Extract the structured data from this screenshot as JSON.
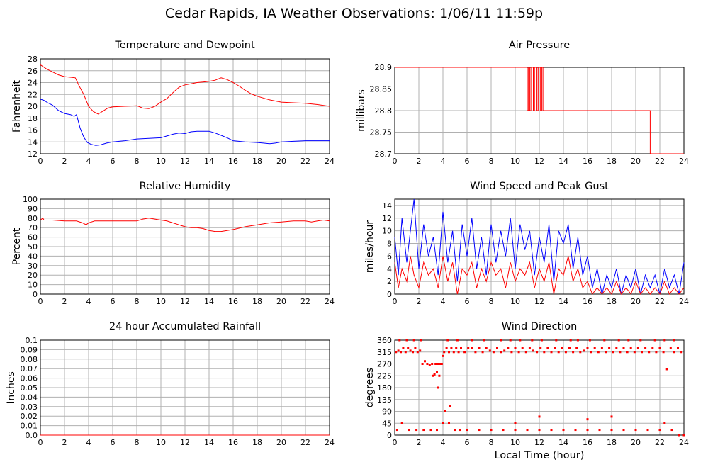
{
  "page": {
    "title": "Cedar Rapids, IA Weather Observations: 1/06/11 11:59p"
  },
  "xaxis_label": "Local Time (hour)",
  "chart_data": [
    {
      "id": "temp",
      "type": "line",
      "title": "Temperature and Dewpoint",
      "ylabel": "Fahrenheit",
      "xlim": [
        0,
        24
      ],
      "ylim": [
        12,
        28
      ],
      "xticks": [
        0,
        2,
        4,
        6,
        8,
        10,
        12,
        14,
        16,
        18,
        20,
        22,
        24
      ],
      "yticks": [
        12,
        14,
        16,
        18,
        20,
        22,
        24,
        26,
        28
      ],
      "grid": true,
      "series": [
        {
          "color": "#ff0000",
          "x": [
            0,
            0.5,
            1,
            1.5,
            2,
            2.5,
            2.9,
            3.2,
            3.6,
            4,
            4.4,
            4.8,
            5.2,
            5.6,
            6,
            7,
            8,
            8.5,
            9,
            9.5,
            10,
            10.5,
            11,
            11.5,
            12,
            12.5,
            13,
            13.5,
            14,
            14.5,
            15,
            15.5,
            16,
            16.5,
            17,
            17.5,
            18,
            18.5,
            19,
            19.5,
            20,
            21,
            22,
            23,
            24
          ],
          "y": [
            27,
            26.3,
            25.8,
            25.3,
            25,
            24.9,
            24.8,
            23.5,
            22,
            20,
            19.1,
            18.7,
            19.2,
            19.7,
            19.9,
            20,
            20.1,
            19.7,
            19.6,
            20,
            20.7,
            21.3,
            22.3,
            23.2,
            23.6,
            23.8,
            24,
            24.1,
            24.2,
            24.4,
            24.8,
            24.5,
            24,
            23.4,
            22.7,
            22.1,
            21.7,
            21.4,
            21.1,
            20.9,
            20.7,
            20.6,
            20.5,
            20.3,
            20
          ]
        },
        {
          "color": "#0000ff",
          "x": [
            0,
            0.3,
            0.6,
            1,
            1.5,
            2,
            2.5,
            2.8,
            3,
            3.3,
            3.6,
            3.9,
            4.2,
            4.6,
            5,
            5.5,
            6,
            7,
            8,
            9,
            10,
            10.5,
            11,
            11.5,
            12,
            12.5,
            13,
            13.5,
            14,
            14.5,
            15,
            15.5,
            16,
            17,
            18,
            18.5,
            19,
            19.5,
            20,
            21,
            22,
            23,
            24
          ],
          "y": [
            21.2,
            21,
            20.6,
            20.2,
            19.3,
            18.8,
            18.6,
            18.3,
            18.6,
            16.3,
            14.8,
            13.9,
            13.6,
            13.4,
            13.5,
            13.8,
            14,
            14.2,
            14.5,
            14.6,
            14.7,
            15,
            15.3,
            15.5,
            15.4,
            15.7,
            15.8,
            15.8,
            15.8,
            15.5,
            15.1,
            14.7,
            14.2,
            14,
            13.9,
            13.8,
            13.7,
            13.8,
            14,
            14.1,
            14.2,
            14.2,
            14.2
          ]
        }
      ]
    },
    {
      "id": "pressure",
      "type": "line",
      "title": "Air Pressure",
      "ylabel": "millibars",
      "xlim": [
        0,
        24
      ],
      "ylim": [
        28.7,
        28.9
      ],
      "xticks": [
        0,
        2,
        4,
        6,
        8,
        10,
        12,
        14,
        16,
        18,
        20,
        22,
        24
      ],
      "yticks": [
        28.7,
        28.75,
        28.8,
        28.85,
        28.9
      ],
      "ytick_labels": [
        "28.7",
        "28.75",
        "28.8",
        "28.85",
        "28.9"
      ],
      "grid": true,
      "series": [
        {
          "color": "#ff0000",
          "x": [
            0,
            11,
            11,
            11.1,
            11.1,
            11.2,
            11.2,
            11.3,
            11.3,
            11.5,
            11.5,
            11.6,
            11.6,
            11.8,
            11.8,
            11.9,
            11.9,
            12.1,
            12.1,
            12.2,
            12.2,
            12.3,
            12.3,
            21.2,
            21.2,
            24
          ],
          "y": [
            28.9,
            28.9,
            28.8,
            28.8,
            28.9,
            28.9,
            28.8,
            28.8,
            28.9,
            28.9,
            28.8,
            28.8,
            28.9,
            28.9,
            28.8,
            28.8,
            28.9,
            28.9,
            28.8,
            28.8,
            28.9,
            28.9,
            28.8,
            28.8,
            28.7,
            28.7
          ]
        }
      ]
    },
    {
      "id": "rh",
      "type": "line",
      "title": "Relative Humidity",
      "ylabel": "Percent",
      "xlim": [
        0,
        24
      ],
      "ylim": [
        0,
        100
      ],
      "xticks": [
        0,
        2,
        4,
        6,
        8,
        10,
        12,
        14,
        16,
        18,
        20,
        22,
        24
      ],
      "yticks": [
        0,
        10,
        20,
        30,
        40,
        50,
        60,
        70,
        80,
        90,
        100
      ],
      "grid": true,
      "series": [
        {
          "color": "#ff0000",
          "x": [
            0,
            0.2,
            0.3,
            0.5,
            1,
            2,
            3,
            3.5,
            3.8,
            4,
            4.5,
            5,
            6,
            7,
            8,
            8.5,
            9,
            9.5,
            10,
            10.5,
            11,
            11.5,
            12,
            12.5,
            13,
            13.5,
            14,
            14.5,
            15,
            15.5,
            16,
            17,
            18,
            19,
            20,
            21,
            22,
            22.5,
            23,
            23.5,
            24
          ],
          "y": [
            78,
            80,
            78,
            78,
            78,
            77,
            77,
            75,
            73,
            75,
            77,
            77,
            77,
            77,
            77,
            79,
            80,
            79,
            78,
            77,
            75,
            73,
            71,
            70,
            70,
            69,
            67,
            66,
            66,
            67,
            68,
            71,
            73,
            75,
            76,
            77,
            77,
            76,
            77,
            78,
            77
          ]
        }
      ]
    },
    {
      "id": "wind",
      "type": "line",
      "title": "Wind Speed and Peak Gust",
      "ylabel": "miles/hour",
      "xlim": [
        0,
        24
      ],
      "ylim": [
        0,
        15
      ],
      "xticks": [
        0,
        2,
        4,
        6,
        8,
        10,
        12,
        14,
        16,
        18,
        20,
        22,
        24
      ],
      "yticks": [
        0,
        2,
        4,
        6,
        8,
        10,
        12,
        14
      ],
      "grid": true,
      "series": [
        {
          "color": "#0000ff",
          "x": [
            0,
            0.3,
            0.6,
            1,
            1.3,
            1.6,
            2,
            2.4,
            2.8,
            3.2,
            3.6,
            4,
            4.4,
            4.8,
            5.2,
            5.6,
            6,
            6.4,
            6.8,
            7.2,
            7.6,
            8,
            8.4,
            8.8,
            9.2,
            9.6,
            10,
            10.4,
            10.8,
            11.2,
            11.6,
            12,
            12.4,
            12.8,
            13.2,
            13.6,
            14,
            14.4,
            14.8,
            15.2,
            15.6,
            16,
            16.4,
            16.8,
            17.2,
            17.6,
            18,
            18.4,
            18.8,
            19.2,
            19.6,
            20,
            20.4,
            20.8,
            21.2,
            21.6,
            22,
            22.4,
            22.8,
            23.2,
            23.6,
            24
          ],
          "y": [
            9,
            3,
            12,
            5,
            10,
            15,
            4,
            11,
            6,
            9,
            3,
            13,
            5,
            10,
            2,
            11,
            6,
            12,
            4,
            9,
            3,
            11,
            5,
            10,
            6,
            12,
            4,
            11,
            7,
            10,
            3,
            9,
            5,
            11,
            2,
            10,
            8,
            11,
            4,
            9,
            3,
            6,
            1,
            4,
            0,
            3,
            1,
            4,
            0,
            3,
            1,
            4,
            0,
            3,
            1,
            3,
            0,
            4,
            1,
            3,
            0,
            5
          ]
        },
        {
          "color": "#ff0000",
          "x": [
            0,
            0.3,
            0.6,
            1,
            1.3,
            1.6,
            2,
            2.4,
            2.8,
            3.2,
            3.6,
            4,
            4.4,
            4.8,
            5.2,
            5.6,
            6,
            6.4,
            6.8,
            7.2,
            7.6,
            8,
            8.4,
            8.8,
            9.2,
            9.6,
            10,
            10.4,
            10.8,
            11.2,
            11.6,
            12,
            12.4,
            12.8,
            13.2,
            13.6,
            14,
            14.4,
            14.8,
            15.2,
            15.6,
            16,
            16.4,
            16.8,
            17.2,
            17.6,
            18,
            18.4,
            18.8,
            19.2,
            19.6,
            20,
            20.4,
            20.8,
            21.2,
            21.6,
            22,
            22.4,
            22.8,
            23.2,
            23.6,
            24
          ],
          "y": [
            5,
            1,
            4,
            2,
            6,
            3,
            1,
            5,
            3,
            4,
            1,
            6,
            2,
            5,
            0,
            4,
            3,
            5,
            1,
            4,
            2,
            5,
            3,
            4,
            1,
            5,
            2,
            4,
            3,
            5,
            1,
            4,
            2,
            5,
            0,
            4,
            3,
            6,
            2,
            4,
            1,
            2,
            0,
            1,
            0,
            1,
            0,
            2,
            0,
            1,
            0,
            2,
            0,
            1,
            0,
            1,
            0,
            2,
            0,
            1,
            0,
            1
          ]
        }
      ]
    },
    {
      "id": "rain",
      "type": "line",
      "title": "24 hour Accumulated Rainfall",
      "ylabel": "Inches",
      "xlim": [
        0,
        24
      ],
      "ylim": [
        0,
        0.1
      ],
      "xticks": [
        0,
        2,
        4,
        6,
        8,
        10,
        12,
        14,
        16,
        18,
        20,
        22,
        24
      ],
      "yticks": [
        0,
        0.01,
        0.02,
        0.03,
        0.04,
        0.05,
        0.06,
        0.07,
        0.08,
        0.09,
        0.1
      ],
      "ytick_labels": [
        "0.0",
        "0.01",
        "0.02",
        "0.03",
        "0.04",
        "0.05",
        "0.06",
        "0.07",
        "0.08",
        "0.09",
        "0.1"
      ],
      "grid": true,
      "series": [
        {
          "color": "#ff0000",
          "x": [
            0,
            24
          ],
          "y": [
            0,
            0
          ]
        }
      ]
    },
    {
      "id": "winddir",
      "type": "scatter",
      "title": "Wind Direction",
      "ylabel": "degrees",
      "xlim": [
        0,
        24
      ],
      "ylim": [
        0,
        360
      ],
      "xticks": [
        0,
        2,
        4,
        6,
        8,
        10,
        12,
        14,
        16,
        18,
        20,
        22,
        24
      ],
      "yticks": [
        0,
        45,
        90,
        135,
        180,
        225,
        270,
        315,
        360
      ],
      "grid": true,
      "series": [
        {
          "color": "#ff0000",
          "x": [
            0.1,
            0.3,
            0.5,
            0.7,
            0.9,
            1.1,
            1.3,
            1.5,
            1.7,
            1.9,
            2.1,
            2.3,
            2.5,
            2.7,
            2.9,
            3.1,
            3.2,
            3.3,
            3.4,
            3.5,
            3.6,
            3.7,
            3.8,
            3.9,
            4,
            4.1,
            4.3,
            4.5,
            4.7,
            4.9,
            5.1,
            5.3,
            5.5,
            5.8,
            6.1,
            6.4,
            6.7,
            7,
            7.3,
            7.6,
            7.9,
            8.2,
            8.5,
            8.8,
            9.1,
            9.4,
            9.7,
            10,
            10.3,
            10.6,
            10.9,
            11.2,
            11.5,
            11.8,
            12.1,
            12.4,
            12.7,
            13,
            13.3,
            13.6,
            13.9,
            14.2,
            14.5,
            14.8,
            15.1,
            15.4,
            15.7,
            16,
            16.3,
            16.6,
            16.9,
            17.2,
            17.5,
            17.8,
            18.1,
            18.4,
            18.7,
            19,
            19.3,
            19.6,
            19.9,
            20.2,
            20.5,
            20.8,
            21.1,
            21.4,
            21.7,
            22,
            22.3,
            22.6,
            22.9,
            23.2,
            23.5,
            23.8,
            0.2,
            0.6,
            1.2,
            1.8,
            2.4,
            3,
            3.4,
            3.6,
            3.8,
            4.2,
            4.6,
            5,
            5.4,
            6,
            7,
            8,
            9,
            10,
            11,
            12,
            13,
            14,
            15,
            16,
            17,
            18,
            19,
            20,
            21,
            22,
            23,
            24,
            0.4,
            1,
            1.6,
            2.2,
            4.4,
            5.2,
            6.4,
            7.4,
            8.8,
            9.6,
            10.4,
            11.4,
            12.2,
            13.4,
            14.6,
            15.2,
            16.2,
            17.4,
            18.6,
            19.4,
            20.4,
            21.6,
            22.4,
            23.2,
            23.6,
            24,
            3.5,
            4,
            4.5,
            10,
            12,
            16,
            18,
            22.4
          ],
          "y": [
            315,
            320,
            315,
            330,
            315,
            330,
            320,
            315,
            330,
            315,
            320,
            270,
            280,
            270,
            265,
            270,
            225,
            230,
            270,
            240,
            180,
            225,
            270,
            270,
            300,
            315,
            330,
            315,
            330,
            315,
            330,
            315,
            330,
            315,
            330,
            330,
            315,
            330,
            315,
            330,
            320,
            315,
            330,
            315,
            320,
            330,
            315,
            330,
            315,
            330,
            315,
            330,
            320,
            315,
            330,
            315,
            330,
            315,
            330,
            315,
            330,
            315,
            330,
            315,
            330,
            315,
            320,
            330,
            315,
            330,
            315,
            330,
            315,
            330,
            315,
            330,
            315,
            330,
            315,
            330,
            315,
            330,
            315,
            330,
            315,
            330,
            315,
            330,
            315,
            250,
            330,
            315,
            330,
            315,
            20,
            45,
            20,
            20,
            20,
            20,
            270,
            270,
            270,
            90,
            110,
            20,
            20,
            20,
            20,
            20,
            20,
            20,
            20,
            20,
            20,
            20,
            20,
            20,
            20,
            20,
            20,
            20,
            20,
            20,
            20,
            0,
            360,
            360,
            360,
            360,
            360,
            360,
            360,
            360,
            360,
            360,
            360,
            360,
            360,
            360,
            360,
            360,
            360,
            360,
            360,
            360,
            360,
            360,
            360,
            360,
            0,
            0,
            20,
            45,
            45,
            45,
            70,
            60,
            70,
            45
          ]
        }
      ]
    }
  ]
}
